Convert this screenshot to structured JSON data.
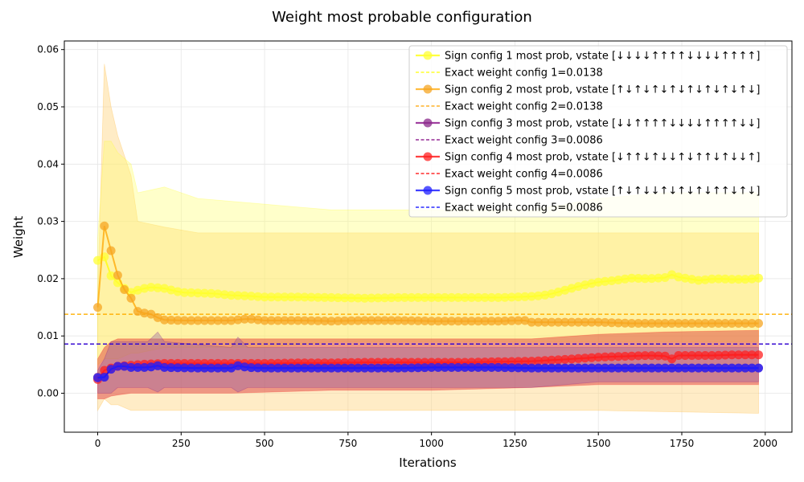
{
  "chart_data": {
    "type": "line",
    "title": "Weight most probable configuration",
    "xlabel": "Iterations",
    "ylabel": "Weight",
    "xlim": [
      -100,
      2080
    ],
    "ylim": [
      -0.0068,
      0.0615
    ],
    "xticks": [
      0,
      250,
      500,
      750,
      1000,
      1250,
      1500,
      1750,
      2000
    ],
    "yticks": [
      0.0,
      0.01,
      0.02,
      0.03,
      0.04,
      0.05,
      0.06
    ],
    "xtick_labels": [
      "0",
      "250",
      "500",
      "750",
      "1000",
      "1250",
      "1500",
      "1750",
      "2000"
    ],
    "ytick_labels": [
      "0.00",
      "0.01",
      "0.02",
      "0.03",
      "0.04",
      "0.05",
      "0.06"
    ],
    "grid": true,
    "legend_position": "top-right",
    "series": [
      {
        "name": "Sign config 1 most prob, vstate [↓↓↓↓↑↑↑↑↓↓↓↓↑↑↑↑]",
        "color": "#ffff00",
        "exact_label": "Exact weight config 1=0.0138",
        "exact_value": 0.0138,
        "points": [
          [
            0,
            0.0232
          ],
          [
            20,
            0.0238
          ],
          [
            40,
            0.0205
          ],
          [
            60,
            0.0193
          ],
          [
            80,
            0.0183
          ],
          [
            100,
            0.0176
          ],
          [
            120,
            0.018
          ],
          [
            140,
            0.0183
          ],
          [
            160,
            0.0185
          ],
          [
            180,
            0.0184
          ],
          [
            200,
            0.0183
          ],
          [
            250,
            0.0176
          ],
          [
            300,
            0.0175
          ],
          [
            350,
            0.0174
          ],
          [
            400,
            0.0171
          ],
          [
            450,
            0.017
          ],
          [
            500,
            0.0168
          ],
          [
            600,
            0.0168
          ],
          [
            700,
            0.0167
          ],
          [
            800,
            0.0166
          ],
          [
            900,
            0.0167
          ],
          [
            1000,
            0.0167
          ],
          [
            1100,
            0.0167
          ],
          [
            1200,
            0.0167
          ],
          [
            1300,
            0.0169
          ],
          [
            1350,
            0.0172
          ],
          [
            1400,
            0.018
          ],
          [
            1450,
            0.0188
          ],
          [
            1500,
            0.0194
          ],
          [
            1550,
            0.0197
          ],
          [
            1600,
            0.0201
          ],
          [
            1650,
            0.02
          ],
          [
            1700,
            0.0202
          ],
          [
            1720,
            0.0207
          ],
          [
            1740,
            0.0203
          ],
          [
            1800,
            0.0197
          ],
          [
            1850,
            0.02
          ],
          [
            1900,
            0.0199
          ],
          [
            1950,
            0.0199
          ],
          [
            1980,
            0.0201
          ]
        ],
        "band": [
          [
            0,
            0.005,
            0.027
          ],
          [
            20,
            0.006,
            0.044
          ],
          [
            40,
            0.006,
            0.044
          ],
          [
            60,
            0.006,
            0.042
          ],
          [
            100,
            0.007,
            0.04
          ],
          [
            120,
            0.007,
            0.035
          ],
          [
            200,
            0.008,
            0.036
          ],
          [
            300,
            0.008,
            0.034
          ],
          [
            500,
            0.008,
            0.033
          ],
          [
            700,
            0.009,
            0.032
          ],
          [
            1000,
            0.009,
            0.032
          ],
          [
            1300,
            0.009,
            0.032
          ],
          [
            1500,
            0.009,
            0.034
          ],
          [
            1700,
            0.009,
            0.035
          ],
          [
            1980,
            0.009,
            0.035
          ]
        ]
      },
      {
        "name": "Sign config 2 most prob, vstate [↑↓↑↓↑↓↑↓↑↓↑↓↑↓↑↓]",
        "color": "#ffa500",
        "exact_label": "Exact weight config 2=0.0138",
        "exact_value": 0.0138,
        "points": [
          [
            0,
            0.015
          ],
          [
            20,
            0.0292
          ],
          [
            40,
            0.0249
          ],
          [
            60,
            0.0206
          ],
          [
            80,
            0.0181
          ],
          [
            100,
            0.0166
          ],
          [
            120,
            0.0143
          ],
          [
            140,
            0.014
          ],
          [
            160,
            0.0138
          ],
          [
            180,
            0.0132
          ],
          [
            200,
            0.0128
          ],
          [
            250,
            0.0127
          ],
          [
            300,
            0.0127
          ],
          [
            400,
            0.0127
          ],
          [
            450,
            0.013
          ],
          [
            500,
            0.0127
          ],
          [
            600,
            0.0127
          ],
          [
            700,
            0.0126
          ],
          [
            800,
            0.0127
          ],
          [
            900,
            0.0127
          ],
          [
            1000,
            0.0126
          ],
          [
            1100,
            0.0126
          ],
          [
            1200,
            0.0126
          ],
          [
            1280,
            0.0127
          ],
          [
            1300,
            0.0124
          ],
          [
            1400,
            0.0124
          ],
          [
            1500,
            0.0124
          ],
          [
            1600,
            0.0122
          ],
          [
            1700,
            0.0122
          ],
          [
            1800,
            0.0122
          ],
          [
            1900,
            0.0122
          ],
          [
            1980,
            0.0122
          ]
        ],
        "band": [
          [
            0,
            -0.003,
            0.017
          ],
          [
            20,
            -0.001,
            0.0575
          ],
          [
            40,
            -0.002,
            0.05
          ],
          [
            60,
            -0.002,
            0.045
          ],
          [
            100,
            -0.003,
            0.038
          ],
          [
            120,
            -0.003,
            0.03
          ],
          [
            200,
            -0.003,
            0.029
          ],
          [
            300,
            -0.003,
            0.028
          ],
          [
            500,
            -0.003,
            0.028
          ],
          [
            1000,
            -0.003,
            0.028
          ],
          [
            1500,
            -0.003,
            0.028
          ],
          [
            1980,
            -0.0035,
            0.028
          ]
        ]
      },
      {
        "name": "Sign config 3 most prob, vstate [↓↓↑↑↑↑↓↓↓↓↑↑↑↑↓↓]",
        "color": "#800080",
        "exact_label": "Exact weight config 3=0.0086",
        "exact_value": 0.0086,
        "points": [
          [
            0,
            0.0028
          ],
          [
            20,
            0.0028
          ],
          [
            40,
            0.0042
          ],
          [
            60,
            0.0047
          ],
          [
            80,
            0.0047
          ],
          [
            100,
            0.0045
          ],
          [
            150,
            0.0045
          ],
          [
            180,
            0.0048
          ],
          [
            200,
            0.0045
          ],
          [
            300,
            0.0044
          ],
          [
            400,
            0.0044
          ],
          [
            420,
            0.0048
          ],
          [
            450,
            0.0045
          ],
          [
            500,
            0.0044
          ],
          [
            600,
            0.0044
          ],
          [
            700,
            0.0044
          ],
          [
            800,
            0.0044
          ],
          [
            900,
            0.0044
          ],
          [
            1000,
            0.0045
          ],
          [
            1100,
            0.0045
          ],
          [
            1200,
            0.0045
          ],
          [
            1300,
            0.0044
          ],
          [
            1400,
            0.0044
          ],
          [
            1500,
            0.0044
          ],
          [
            1600,
            0.0044
          ],
          [
            1700,
            0.0044
          ],
          [
            1800,
            0.0044
          ],
          [
            1900,
            0.0044
          ],
          [
            1980,
            0.0044
          ]
        ],
        "band": [
          [
            0,
            0.0,
            0.004
          ],
          [
            20,
            0.0,
            0.006
          ],
          [
            40,
            0.0,
            0.009
          ],
          [
            60,
            0.001,
            0.009
          ],
          [
            100,
            0.001,
            0.009
          ],
          [
            150,
            0.001,
            0.009
          ],
          [
            180,
            0.0002,
            0.0107
          ],
          [
            200,
            0.001,
            0.009
          ],
          [
            400,
            0.001,
            0.008
          ],
          [
            420,
            0.0002,
            0.0098
          ],
          [
            450,
            0.001,
            0.008
          ],
          [
            700,
            0.001,
            0.008
          ],
          [
            1000,
            0.001,
            0.008
          ],
          [
            1300,
            0.001,
            0.008
          ],
          [
            1500,
            0.002,
            0.008
          ],
          [
            1980,
            0.002,
            0.008
          ]
        ]
      },
      {
        "name": "Sign config 4 most prob, vstate [↓↑↑↓↑↓↓↑↓↑↑↓↑↓↓↑]",
        "color": "#ff0000",
        "exact_label": "Exact weight config 4=0.0086",
        "exact_value": 0.0086,
        "points": [
          [
            0,
            0.0024
          ],
          [
            20,
            0.004
          ],
          [
            40,
            0.0044
          ],
          [
            60,
            0.0047
          ],
          [
            80,
            0.0048
          ],
          [
            100,
            0.0049
          ],
          [
            150,
            0.0051
          ],
          [
            200,
            0.0052
          ],
          [
            300,
            0.0052
          ],
          [
            400,
            0.0052
          ],
          [
            500,
            0.0052
          ],
          [
            600,
            0.0053
          ],
          [
            700,
            0.0053
          ],
          [
            800,
            0.0054
          ],
          [
            900,
            0.0054
          ],
          [
            1000,
            0.0054
          ],
          [
            1100,
            0.0054
          ],
          [
            1200,
            0.0055
          ],
          [
            1300,
            0.0056
          ],
          [
            1400,
            0.0059
          ],
          [
            1450,
            0.0061
          ],
          [
            1500,
            0.0063
          ],
          [
            1550,
            0.0064
          ],
          [
            1600,
            0.0065
          ],
          [
            1650,
            0.0066
          ],
          [
            1700,
            0.0065
          ],
          [
            1720,
            0.006
          ],
          [
            1740,
            0.0066
          ],
          [
            1800,
            0.0066
          ],
          [
            1850,
            0.0066
          ],
          [
            1900,
            0.0067
          ],
          [
            1950,
            0.0067
          ],
          [
            1980,
            0.0067
          ]
        ],
        "band": [
          [
            0,
            -0.001,
            0.006
          ],
          [
            20,
            -0.001,
            0.008
          ],
          [
            40,
            -0.0005,
            0.009
          ],
          [
            60,
            -0.0003,
            0.0095
          ],
          [
            100,
            0.0,
            0.0095
          ],
          [
            200,
            0.0,
            0.0095
          ],
          [
            400,
            0.0,
            0.0095
          ],
          [
            700,
            0.0005,
            0.0095
          ],
          [
            1000,
            0.0005,
            0.0095
          ],
          [
            1300,
            0.001,
            0.0095
          ],
          [
            1500,
            0.0015,
            0.0103
          ],
          [
            1700,
            0.0015,
            0.0107
          ],
          [
            1980,
            0.0015,
            0.011
          ]
        ]
      },
      {
        "name": "Sign config 5 most prob, vstate [↑↓↑↓↓↑↓↑↓↑↓↑↑↓↑↓]",
        "color": "#0000ff",
        "exact_label": "Exact weight config 5=0.0086",
        "exact_value": 0.0086,
        "points": [
          [
            0,
            0.0027
          ],
          [
            20,
            0.0028
          ],
          [
            40,
            0.0042
          ],
          [
            60,
            0.0047
          ],
          [
            80,
            0.0047
          ],
          [
            100,
            0.0045
          ],
          [
            150,
            0.0045
          ],
          [
            180,
            0.0048
          ],
          [
            200,
            0.0045
          ],
          [
            300,
            0.0044
          ],
          [
            400,
            0.0044
          ],
          [
            420,
            0.0048
          ],
          [
            450,
            0.0045
          ],
          [
            500,
            0.0044
          ],
          [
            600,
            0.0044
          ],
          [
            700,
            0.0044
          ],
          [
            800,
            0.0044
          ],
          [
            900,
            0.0044
          ],
          [
            1000,
            0.0045
          ],
          [
            1100,
            0.0045
          ],
          [
            1200,
            0.0045
          ],
          [
            1300,
            0.0044
          ],
          [
            1400,
            0.0044
          ],
          [
            1500,
            0.0044
          ],
          [
            1600,
            0.0044
          ],
          [
            1700,
            0.0044
          ],
          [
            1800,
            0.0044
          ],
          [
            1900,
            0.0044
          ],
          [
            1980,
            0.0044
          ]
        ]
      }
    ]
  }
}
